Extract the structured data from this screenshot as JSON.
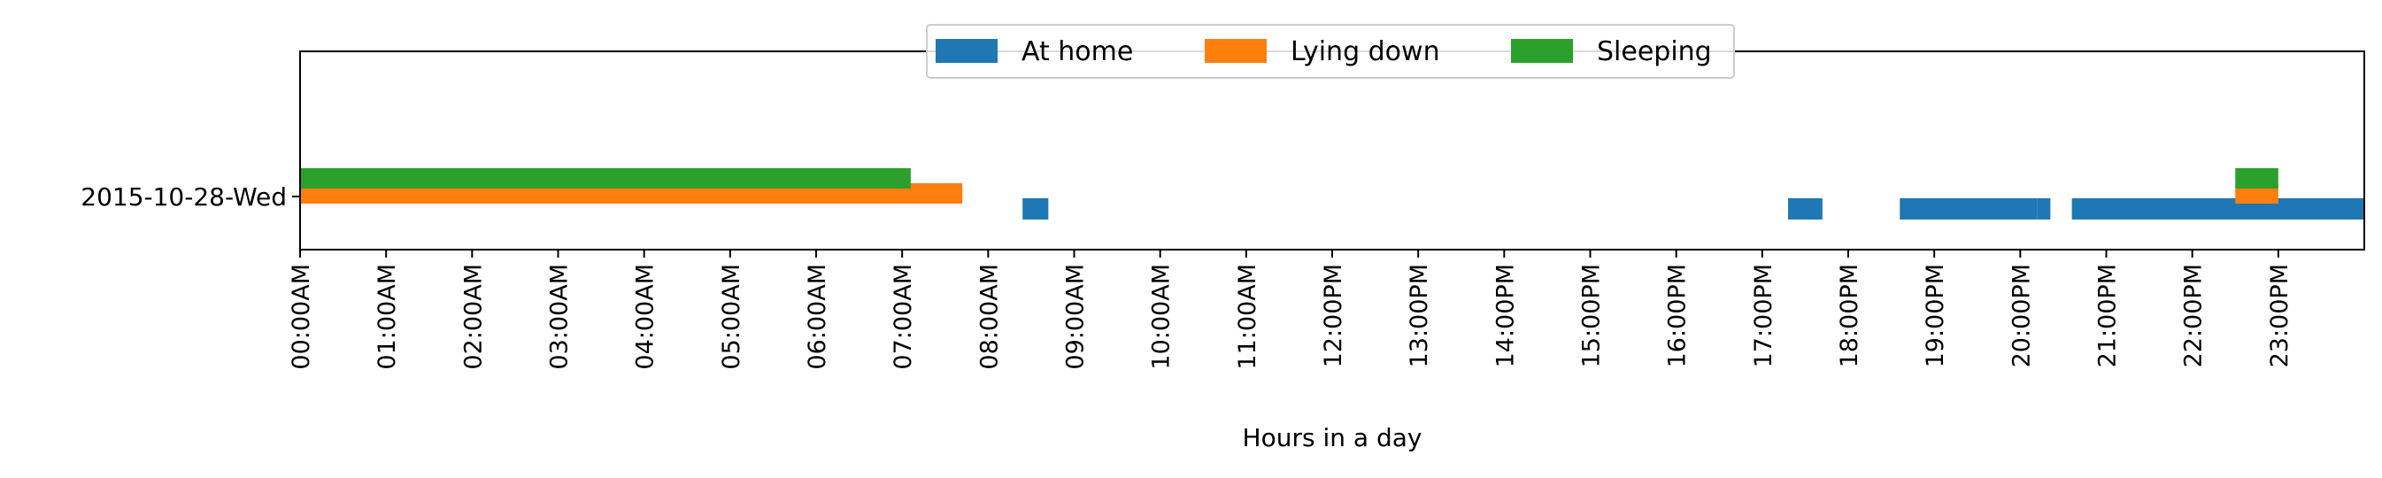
{
  "chart_data": {
    "type": "timeline",
    "xlabel": "Hours in a day",
    "ylabel": "",
    "xlim": [
      0,
      24
    ],
    "rows": [
      "2015-10-28-Wed"
    ],
    "x_ticks": [
      "00:00AM",
      "01:00AM",
      "02:00AM",
      "03:00AM",
      "04:00AM",
      "05:00AM",
      "06:00AM",
      "07:00AM",
      "08:00AM",
      "09:00AM",
      "10:00AM",
      "11:00AM",
      "12:00PM",
      "13:00PM",
      "14:00PM",
      "15:00PM",
      "16:00PM",
      "17:00PM",
      "18:00PM",
      "19:00PM",
      "20:00PM",
      "21:00PM",
      "22:00PM",
      "23:00PM"
    ],
    "legend_position": "top-center",
    "grid": false,
    "series": [
      {
        "name": "At home",
        "color": "#1f77b4",
        "intervals": [
          [
            8.4,
            8.7
          ],
          [
            17.3,
            17.7
          ],
          [
            18.6,
            20.2
          ],
          [
            20.2,
            20.35
          ],
          [
            20.6,
            24.0
          ]
        ]
      },
      {
        "name": "Lying down",
        "color": "#ff7f0e",
        "intervals": [
          [
            0.0,
            7.7
          ],
          [
            22.5,
            23.0
          ]
        ]
      },
      {
        "name": "Sleeping",
        "color": "#2ca02c",
        "intervals": [
          [
            0.0,
            7.1
          ],
          [
            22.5,
            23.0
          ]
        ]
      }
    ]
  }
}
